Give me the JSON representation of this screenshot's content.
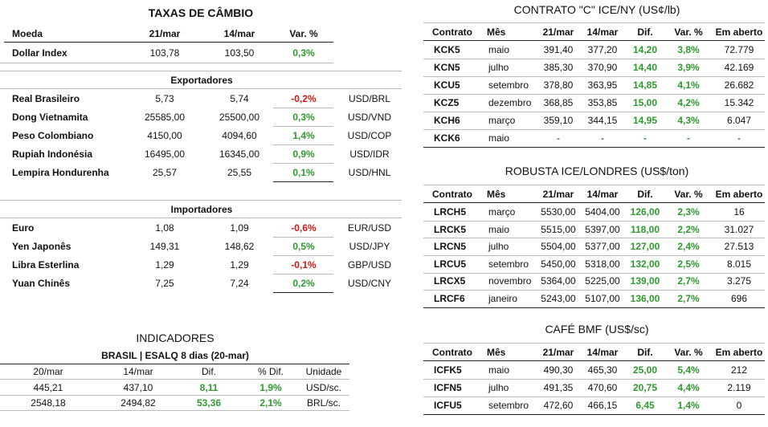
{
  "exchange": {
    "title": "TAXAS DE CÂMBIO",
    "header": [
      "Moeda",
      "21/mar",
      "14/mar",
      "Var. %"
    ],
    "dollar": [
      [
        "Dollar Index",
        "103,78",
        "103,50",
        "0,3%"
      ]
    ],
    "groups": [
      {
        "title": "Exportadores",
        "rows": [
          [
            "Real Brasileiro",
            "5,73",
            "5,74",
            "-0,2%",
            "USD/BRL"
          ],
          [
            "Dong Vietnamita",
            "25585,00",
            "25500,00",
            "0,3%",
            "USD/VND"
          ],
          [
            "Peso Colombiano",
            "4150,00",
            "4094,60",
            "1,4%",
            "USD/COP"
          ],
          [
            "Rupiah Indonésia",
            "16495,00",
            "16345,00",
            "0,9%",
            "USD/IDR"
          ],
          [
            "Lempira Hondurenha",
            "25,57",
            "25,55",
            "0,1%",
            "USD/HNL"
          ]
        ]
      },
      {
        "title": "Importadores",
        "rows": [
          [
            "Euro",
            "1,08",
            "1,09",
            "-0,6%",
            "EUR/USD"
          ],
          [
            "Yen Japonês",
            "149,31",
            "148,62",
            "0,5%",
            "USD/JPY"
          ],
          [
            "Libra Esterlina",
            "1,29",
            "1,29",
            "-0,1%",
            "GBP/USD"
          ],
          [
            "Yuan Chinês",
            "7,25",
            "7,24",
            "0,2%",
            "USD/CNY"
          ]
        ]
      }
    ]
  },
  "indicators": {
    "title": "INDICADORES",
    "subtitle": "BRASIL | ESALQ 8 dias (20-mar)",
    "header": [
      "20/mar",
      "14/mar",
      "Dif.",
      "% Dif.",
      "Unidade"
    ],
    "rows": [
      [
        "445,21",
        "437,10",
        "8,11",
        "1,9%",
        "USD/sc."
      ],
      [
        "2548,18",
        "2494,82",
        "53,36",
        "2,1%",
        "BRL/sc."
      ]
    ]
  },
  "futures": [
    {
      "title": "CONTRATO \"C\" ICE/NY (US¢/lb)",
      "header": [
        "Contrato",
        "Mês",
        "21/mar",
        "14/mar",
        "Dif.",
        "Var. %",
        "Em aberto"
      ],
      "rows": [
        [
          "KCK5",
          "maio",
          "391,40",
          "377,20",
          "14,20",
          "3,8%",
          "72.779"
        ],
        [
          "KCN5",
          "julho",
          "385,30",
          "370,90",
          "14,40",
          "3,9%",
          "42.169"
        ],
        [
          "KCU5",
          "setembro",
          "378,80",
          "363,95",
          "14,85",
          "4,1%",
          "26.682"
        ],
        [
          "KCZ5",
          "dezembro",
          "368,85",
          "353,85",
          "15,00",
          "4,2%",
          "15.342"
        ],
        [
          "KCH6",
          "março",
          "359,10",
          "344,15",
          "14,95",
          "4,3%",
          "6.047"
        ],
        [
          "KCK6",
          "maio",
          "-",
          "-",
          "-",
          "-",
          "-"
        ]
      ]
    },
    {
      "title": "ROBUSTA ICE/LONDRES (US$/ton)",
      "header": [
        "Contrato",
        "Mês",
        "21/mar",
        "14/mar",
        "Dif.",
        "Var. %",
        "Em aberto"
      ],
      "rows": [
        [
          "LRCH5",
          "março",
          "5530,00",
          "5404,00",
          "126,00",
          "2,3%",
          "16"
        ],
        [
          "LRCK5",
          "maio",
          "5515,00",
          "5397,00",
          "118,00",
          "2,2%",
          "31.027"
        ],
        [
          "LRCN5",
          "julho",
          "5504,00",
          "5377,00",
          "127,00",
          "2,4%",
          "27.513"
        ],
        [
          "LRCU5",
          "setembro",
          "5450,00",
          "5318,00",
          "132,00",
          "2,5%",
          "8.015"
        ],
        [
          "LRCX5",
          "novembro",
          "5364,00",
          "5225,00",
          "139,00",
          "2,7%",
          "3.275"
        ],
        [
          "LRCF6",
          "janeiro",
          "5243,00",
          "5107,00",
          "136,00",
          "2,7%",
          "696"
        ]
      ]
    },
    {
      "title": "CAFÉ BMF (US$/sc)",
      "header": [
        "Contrato",
        "Mês",
        "21/mar",
        "14/mar",
        "Dif.",
        "Var. %",
        "Em aberto"
      ],
      "rows": [
        [
          "ICFK5",
          "maio",
          "490,30",
          "465,30",
          "25,00",
          "5,4%",
          "212"
        ],
        [
          "ICFN5",
          "julho",
          "491,35",
          "470,60",
          "20,75",
          "4,4%",
          "2.119"
        ],
        [
          "ICFU5",
          "setembro",
          "472,60",
          "466,15",
          "6,45",
          "1,4%",
          "0"
        ]
      ]
    }
  ]
}
